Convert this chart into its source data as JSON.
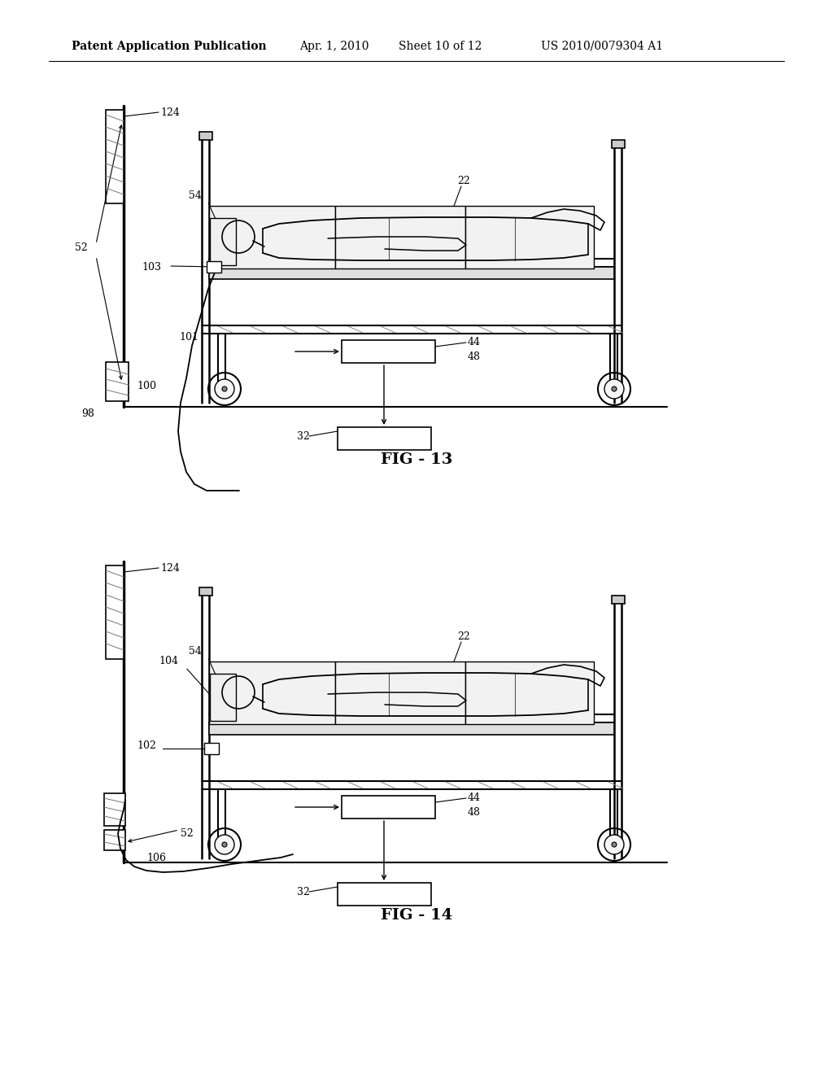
{
  "bg_color": "#ffffff",
  "line_color": "#000000",
  "fig13_label": "FIG - 13",
  "fig14_label": "FIG - 14",
  "header_left": "Patent Application Publication",
  "header_mid1": "Apr. 1, 2010",
  "header_mid2": "Sheet 10 of 12",
  "header_right": "US 2010/0079304 A1"
}
